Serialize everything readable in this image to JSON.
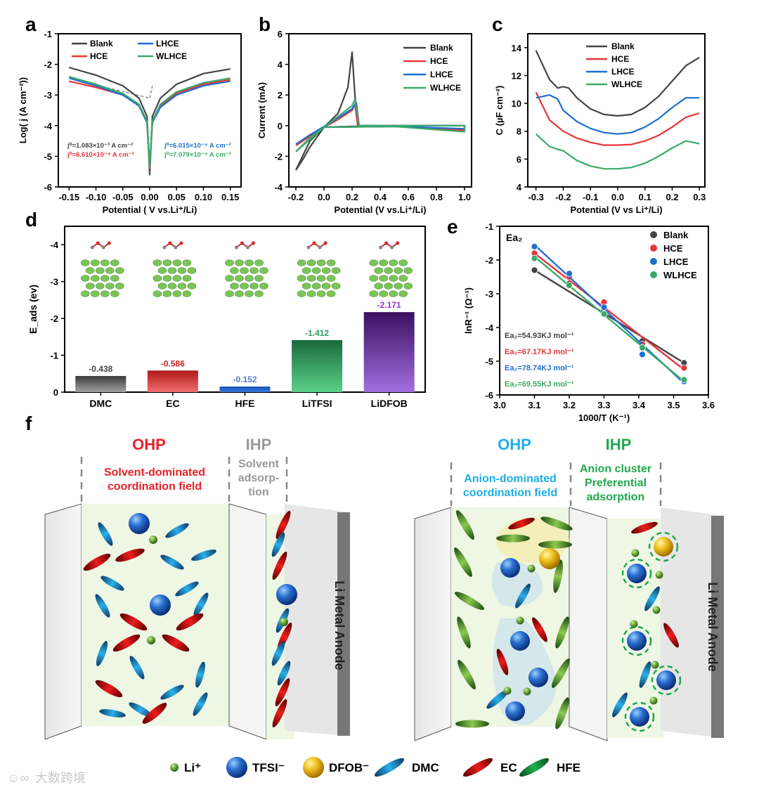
{
  "colors": {
    "blank": "#444444",
    "hce": "#e8353a",
    "lhce": "#1f6fd1",
    "wlhce": "#3aaa6a",
    "ohp_red": "#e8202a",
    "ihp_gray": "#9a9a9a",
    "ohp_blue": "#1eaee6",
    "ihp_green": "#22a84f"
  },
  "chart_data": [
    {
      "id": "a",
      "panel_label": "a",
      "type": "line",
      "xlabel": "Potential ( V vs.Li⁺/Li)",
      "ylabel": "Log( j (A cm⁻²))",
      "xlim": [
        -0.17,
        0.17
      ],
      "ylim": [
        -6,
        -1
      ],
      "xticks": [
        "-0.15",
        "-0.10",
        "-0.05",
        "0.00",
        "0.05",
        "0.10",
        "0.15"
      ],
      "yticks": [
        "-6",
        "-5",
        "-4",
        "-3",
        "-2",
        "-1"
      ],
      "legend": [
        "Blank",
        "HCE",
        "LHCE",
        "WLHCE"
      ],
      "annotations": [
        "j⁰=1.083×10⁻³ A cm⁻²",
        "j⁰=6.610×10⁻⁴ A cm⁻²",
        "j⁰=6.015×10⁻⁴ A cm⁻²",
        "j⁰=7.079×10⁻⁴ A cm⁻²"
      ],
      "series": [
        {
          "name": "Blank",
          "x": [
            -0.15,
            -0.1,
            -0.05,
            -0.02,
            -0.005,
            0,
            0.005,
            0.02,
            0.05,
            0.1,
            0.15
          ],
          "y": [
            -2.1,
            -2.35,
            -2.7,
            -3.1,
            -3.7,
            -5.6,
            -3.7,
            -3.1,
            -2.65,
            -2.3,
            -2.15
          ]
        },
        {
          "name": "HCE",
          "x": [
            -0.15,
            -0.1,
            -0.05,
            -0.02,
            -0.005,
            0,
            0.005,
            0.02,
            0.05,
            0.1,
            0.15
          ],
          "y": [
            -2.55,
            -2.75,
            -3.0,
            -3.35,
            -3.9,
            -5.4,
            -3.9,
            -3.35,
            -2.95,
            -2.65,
            -2.5
          ]
        },
        {
          "name": "LHCE",
          "x": [
            -0.15,
            -0.1,
            -0.05,
            -0.02,
            -0.005,
            0,
            0.005,
            0.02,
            0.05,
            0.1,
            0.15
          ],
          "y": [
            -2.45,
            -2.7,
            -3.0,
            -3.35,
            -3.9,
            -5.3,
            -3.9,
            -3.4,
            -3.0,
            -2.7,
            -2.55
          ]
        },
        {
          "name": "WLHCE",
          "x": [
            -0.15,
            -0.1,
            -0.05,
            -0.02,
            -0.005,
            0,
            0.005,
            0.02,
            0.05,
            0.1,
            0.15
          ],
          "y": [
            -2.4,
            -2.65,
            -2.95,
            -3.3,
            -3.85,
            -5.35,
            -3.85,
            -3.3,
            -2.9,
            -2.6,
            -2.45
          ]
        }
      ]
    },
    {
      "id": "b",
      "panel_label": "b",
      "type": "line",
      "xlabel": "Potential (V vs.Li⁺/Li)",
      "ylabel": "Current (mA)",
      "xlim": [
        -0.25,
        1.05
      ],
      "ylim": [
        -4,
        6
      ],
      "xticks": [
        "-0.2",
        "0.0",
        "0.2",
        "0.4",
        "0.6",
        "0.8",
        "1.0"
      ],
      "yticks": [
        "-4",
        "-2",
        "0",
        "2",
        "4",
        "6"
      ],
      "legend": [
        "Blank",
        "HCE",
        "LHCE",
        "WLHCE"
      ],
      "series": [
        {
          "name": "Blank",
          "x": [
            -0.2,
            -0.15,
            -0.1,
            0.0,
            0.1,
            0.17,
            0.2,
            0.22,
            0.24,
            0.5,
            1.0,
            1.0,
            0.5,
            0.2,
            0.0,
            -0.1,
            -0.2
          ],
          "y": [
            -2.9,
            -2.2,
            -1.4,
            -0.1,
            0.8,
            2.5,
            4.8,
            2.0,
            0.0,
            0.0,
            0.0,
            -0.3,
            -0.05,
            -0.05,
            -0.1,
            -1.0,
            -2.9
          ]
        },
        {
          "name": "HCE",
          "x": [
            -0.2,
            -0.1,
            0.0,
            0.1,
            0.2,
            0.22,
            0.24,
            0.5,
            1.0,
            1.0,
            0.5,
            0.0,
            -0.1,
            -0.2
          ],
          "y": [
            -1.3,
            -0.7,
            -0.1,
            0.4,
            1.0,
            1.4,
            0.0,
            0.0,
            0.0,
            -0.3,
            -0.05,
            -0.1,
            -0.6,
            -1.3
          ]
        },
        {
          "name": "LHCE",
          "x": [
            -0.2,
            -0.1,
            0.0,
            0.1,
            0.2,
            0.23,
            0.25,
            0.5,
            1.0,
            1.0,
            0.5,
            0.0,
            -0.1,
            -0.2
          ],
          "y": [
            -1.2,
            -0.6,
            -0.05,
            0.5,
            1.1,
            1.5,
            0.0,
            0.0,
            0.0,
            -0.2,
            -0.05,
            -0.1,
            -0.6,
            -1.2
          ]
        },
        {
          "name": "WLHCE",
          "x": [
            -0.2,
            -0.1,
            0.0,
            0.1,
            0.2,
            0.22,
            0.25,
            0.5,
            1.0,
            1.0,
            0.5,
            0.0,
            -0.1,
            -0.2
          ],
          "y": [
            -1.7,
            -0.9,
            -0.1,
            0.6,
            1.3,
            1.7,
            0.0,
            0.0,
            0.0,
            -0.4,
            -0.05,
            -0.1,
            -0.8,
            -1.7
          ]
        }
      ]
    },
    {
      "id": "c",
      "panel_label": "c",
      "type": "line",
      "xlabel": "Potential (V vs Li⁺/Li)",
      "ylabel": "C (µF cm⁻²)",
      "xlim": [
        -0.33,
        0.32
      ],
      "ylim": [
        4,
        15
      ],
      "xticks": [
        "-0.3",
        "-0.2",
        "-0.1",
        "0.0",
        "0.1",
        "0.2",
        "0.3"
      ],
      "yticks": [
        "4",
        "6",
        "8",
        "10",
        "12",
        "14"
      ],
      "legend": [
        "Blank",
        "HCE",
        "LHCE",
        "WLHCE"
      ],
      "series": [
        {
          "name": "Blank",
          "x": [
            -0.3,
            -0.25,
            -0.22,
            -0.2,
            -0.18,
            -0.15,
            -0.1,
            -0.05,
            0,
            0.05,
            0.1,
            0.15,
            0.2,
            0.25,
            0.3
          ],
          "y": [
            13.8,
            11.7,
            11.1,
            11.2,
            11.1,
            10.4,
            9.6,
            9.2,
            9.1,
            9.2,
            9.7,
            10.5,
            11.6,
            12.7,
            13.3
          ]
        },
        {
          "name": "HCE",
          "x": [
            -0.3,
            -0.25,
            -0.2,
            -0.15,
            -0.1,
            -0.05,
            0,
            0.05,
            0.1,
            0.15,
            0.2,
            0.25,
            0.3
          ],
          "y": [
            10.8,
            8.8,
            8.0,
            7.5,
            7.2,
            7.0,
            7.0,
            7.05,
            7.3,
            7.7,
            8.3,
            9.0,
            9.3
          ]
        },
        {
          "name": "LHCE",
          "x": [
            -0.3,
            -0.25,
            -0.22,
            -0.2,
            -0.15,
            -0.1,
            -0.05,
            0,
            0.05,
            0.1,
            0.15,
            0.2,
            0.25,
            0.3
          ],
          "y": [
            10.4,
            10.6,
            10.3,
            9.5,
            8.7,
            8.2,
            7.9,
            7.8,
            7.9,
            8.3,
            8.9,
            9.7,
            10.4,
            10.4
          ]
        },
        {
          "name": "WLHCE",
          "x": [
            -0.3,
            -0.25,
            -0.22,
            -0.2,
            -0.15,
            -0.1,
            -0.05,
            0,
            0.05,
            0.1,
            0.15,
            0.2,
            0.25,
            0.3
          ],
          "y": [
            7.8,
            6.9,
            6.7,
            6.6,
            5.9,
            5.5,
            5.3,
            5.3,
            5.4,
            5.7,
            6.2,
            6.8,
            7.3,
            7.1
          ]
        }
      ]
    },
    {
      "id": "d",
      "panel_label": "d",
      "type": "bar",
      "ylabel": "E_ads (ev)",
      "ylim": [
        0,
        -4.5
      ],
      "yticks": [
        "0",
        "-1",
        "-2",
        "-3",
        "-4"
      ],
      "categories": [
        "DMC",
        "EC",
        "HFE",
        "LiTFSI",
        "LiDFOB"
      ],
      "values": [
        -0.438,
        -0.586,
        -0.152,
        -1.412,
        -2.171
      ],
      "value_labels": [
        "-0.438",
        "-0.586",
        "-0.152",
        "-1.412",
        "-2.171"
      ],
      "bar_colors": [
        "#5a5a5a",
        "#c22a2a",
        "#1f5fb5",
        "#2f9a5c",
        "#8a4fc0"
      ],
      "label_colors": [
        "#444444",
        "#d02020",
        "#5a7ad8",
        "#2aa060",
        "#9a30d8"
      ]
    },
    {
      "id": "e",
      "panel_label": "e",
      "type": "scatter",
      "title": "Ea₂",
      "xlabel": "1000/T (K⁻¹)",
      "ylabel": "lnR⁻¹ (Ω⁻¹)",
      "xlim": [
        3.0,
        3.6
      ],
      "ylim": [
        -6,
        -1
      ],
      "xticks": [
        "3.0",
        "3.1",
        "3.2",
        "3.3",
        "3.4",
        "3.5",
        "3.6"
      ],
      "yticks": [
        "-6",
        "-5",
        "-4",
        "-3",
        "-2",
        "-1"
      ],
      "legend": [
        "Blank",
        "HCE",
        "LHCE",
        "WLHCE"
      ],
      "annotations": [
        "Ea₂=54.93KJ mol⁻¹",
        "Ea₂=67.17KJ mol⁻¹",
        "Ea₂=78.74KJ mol⁻¹",
        "Ea₂=69.55KJ mol⁻¹"
      ],
      "series": [
        {
          "name": "Blank",
          "x": [
            3.1,
            3.2,
            3.3,
            3.41,
            3.53
          ],
          "y": [
            -2.3,
            -2.7,
            -3.5,
            -4.4,
            -5.05
          ],
          "fit": [
            [
              3.1,
              -2.3
            ],
            [
              3.53,
              -5.05
            ]
          ]
        },
        {
          "name": "HCE",
          "x": [
            3.1,
            3.2,
            3.3,
            3.41,
            3.53
          ],
          "y": [
            -1.8,
            -2.5,
            -3.25,
            -4.5,
            -5.2
          ],
          "fit": [
            [
              3.1,
              -1.8
            ],
            [
              3.53,
              -5.25
            ]
          ]
        },
        {
          "name": "LHCE",
          "x": [
            3.1,
            3.2,
            3.3,
            3.41,
            3.53
          ],
          "y": [
            -1.6,
            -2.4,
            -3.4,
            -4.8,
            -5.6
          ],
          "fit": [
            [
              3.1,
              -1.55
            ],
            [
              3.53,
              -5.65
            ]
          ]
        },
        {
          "name": "WLHCE",
          "x": [
            3.1,
            3.2,
            3.3,
            3.41,
            3.53
          ],
          "y": [
            -1.95,
            -2.75,
            -3.6,
            -4.6,
            -5.55
          ],
          "fit": [
            [
              3.1,
              -1.9
            ],
            [
              3.53,
              -5.6
            ]
          ]
        }
      ]
    }
  ],
  "panel_f": {
    "label": "f",
    "left": {
      "ohp": "OHP",
      "ohp_desc": "Solvent-dominated coordination field",
      "ihp": "IHP",
      "ihp_desc": "Solvent adsorp- tion"
    },
    "right": {
      "ohp": "OHP",
      "ohp_desc": "Anion-dominated coordination field",
      "ihp": "IHP",
      "ihp_desc": "Anion cluster Preferential adsorption"
    },
    "anode_label": "Li Metal Anode",
    "legend": [
      {
        "name": "Li⁺",
        "kind": "li"
      },
      {
        "name": "TFSI⁻",
        "kind": "tfsi"
      },
      {
        "name": "DFOB⁻",
        "kind": "dfob"
      },
      {
        "name": "DMC",
        "kind": "dmc"
      },
      {
        "name": "EC",
        "kind": "ec"
      },
      {
        "name": "HFE",
        "kind": "hfe"
      }
    ]
  },
  "watermark": "大数跨境"
}
